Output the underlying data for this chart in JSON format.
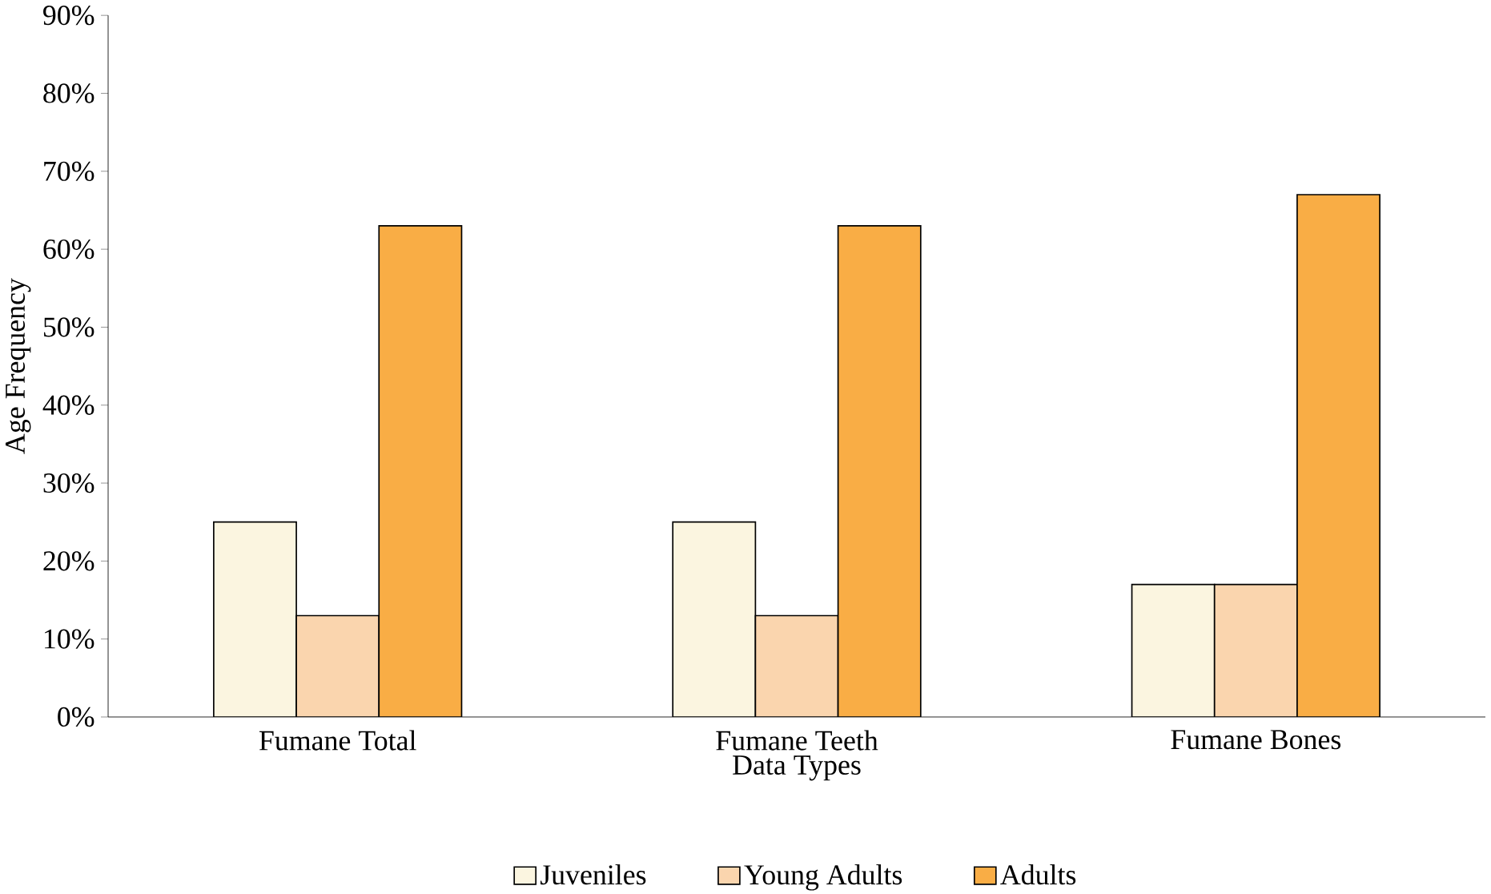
{
  "chart_data": {
    "type": "bar",
    "categories": [
      "Fumane Total",
      "Fumane Teeth",
      "Fumane Bones"
    ],
    "xlabel": "Data Types",
    "ylabel": "Age Frequency",
    "series": [
      {
        "name": "Juveniles",
        "color": "#fbf5e0",
        "values": [
          25,
          25,
          17
        ]
      },
      {
        "name": "Young Adults",
        "color": "#fad5ae",
        "values": [
          13,
          13,
          17
        ]
      },
      {
        "name": "Adults",
        "color": "#f9ad45",
        "values": [
          63,
          63,
          67
        ]
      }
    ],
    "ylim": [
      0,
      90
    ],
    "yticks": [
      {
        "value": 0,
        "label": "0%"
      },
      {
        "value": 10,
        "label": "10%"
      },
      {
        "value": 20,
        "label": "20%"
      },
      {
        "value": 30,
        "label": "30%"
      },
      {
        "value": 40,
        "label": "40%"
      },
      {
        "value": 50,
        "label": "50%"
      },
      {
        "value": 60,
        "label": "60%"
      },
      {
        "value": 70,
        "label": "70%"
      },
      {
        "value": 80,
        "label": "80%"
      },
      {
        "value": 90,
        "label": "90%"
      }
    ],
    "legend": "bottom"
  }
}
